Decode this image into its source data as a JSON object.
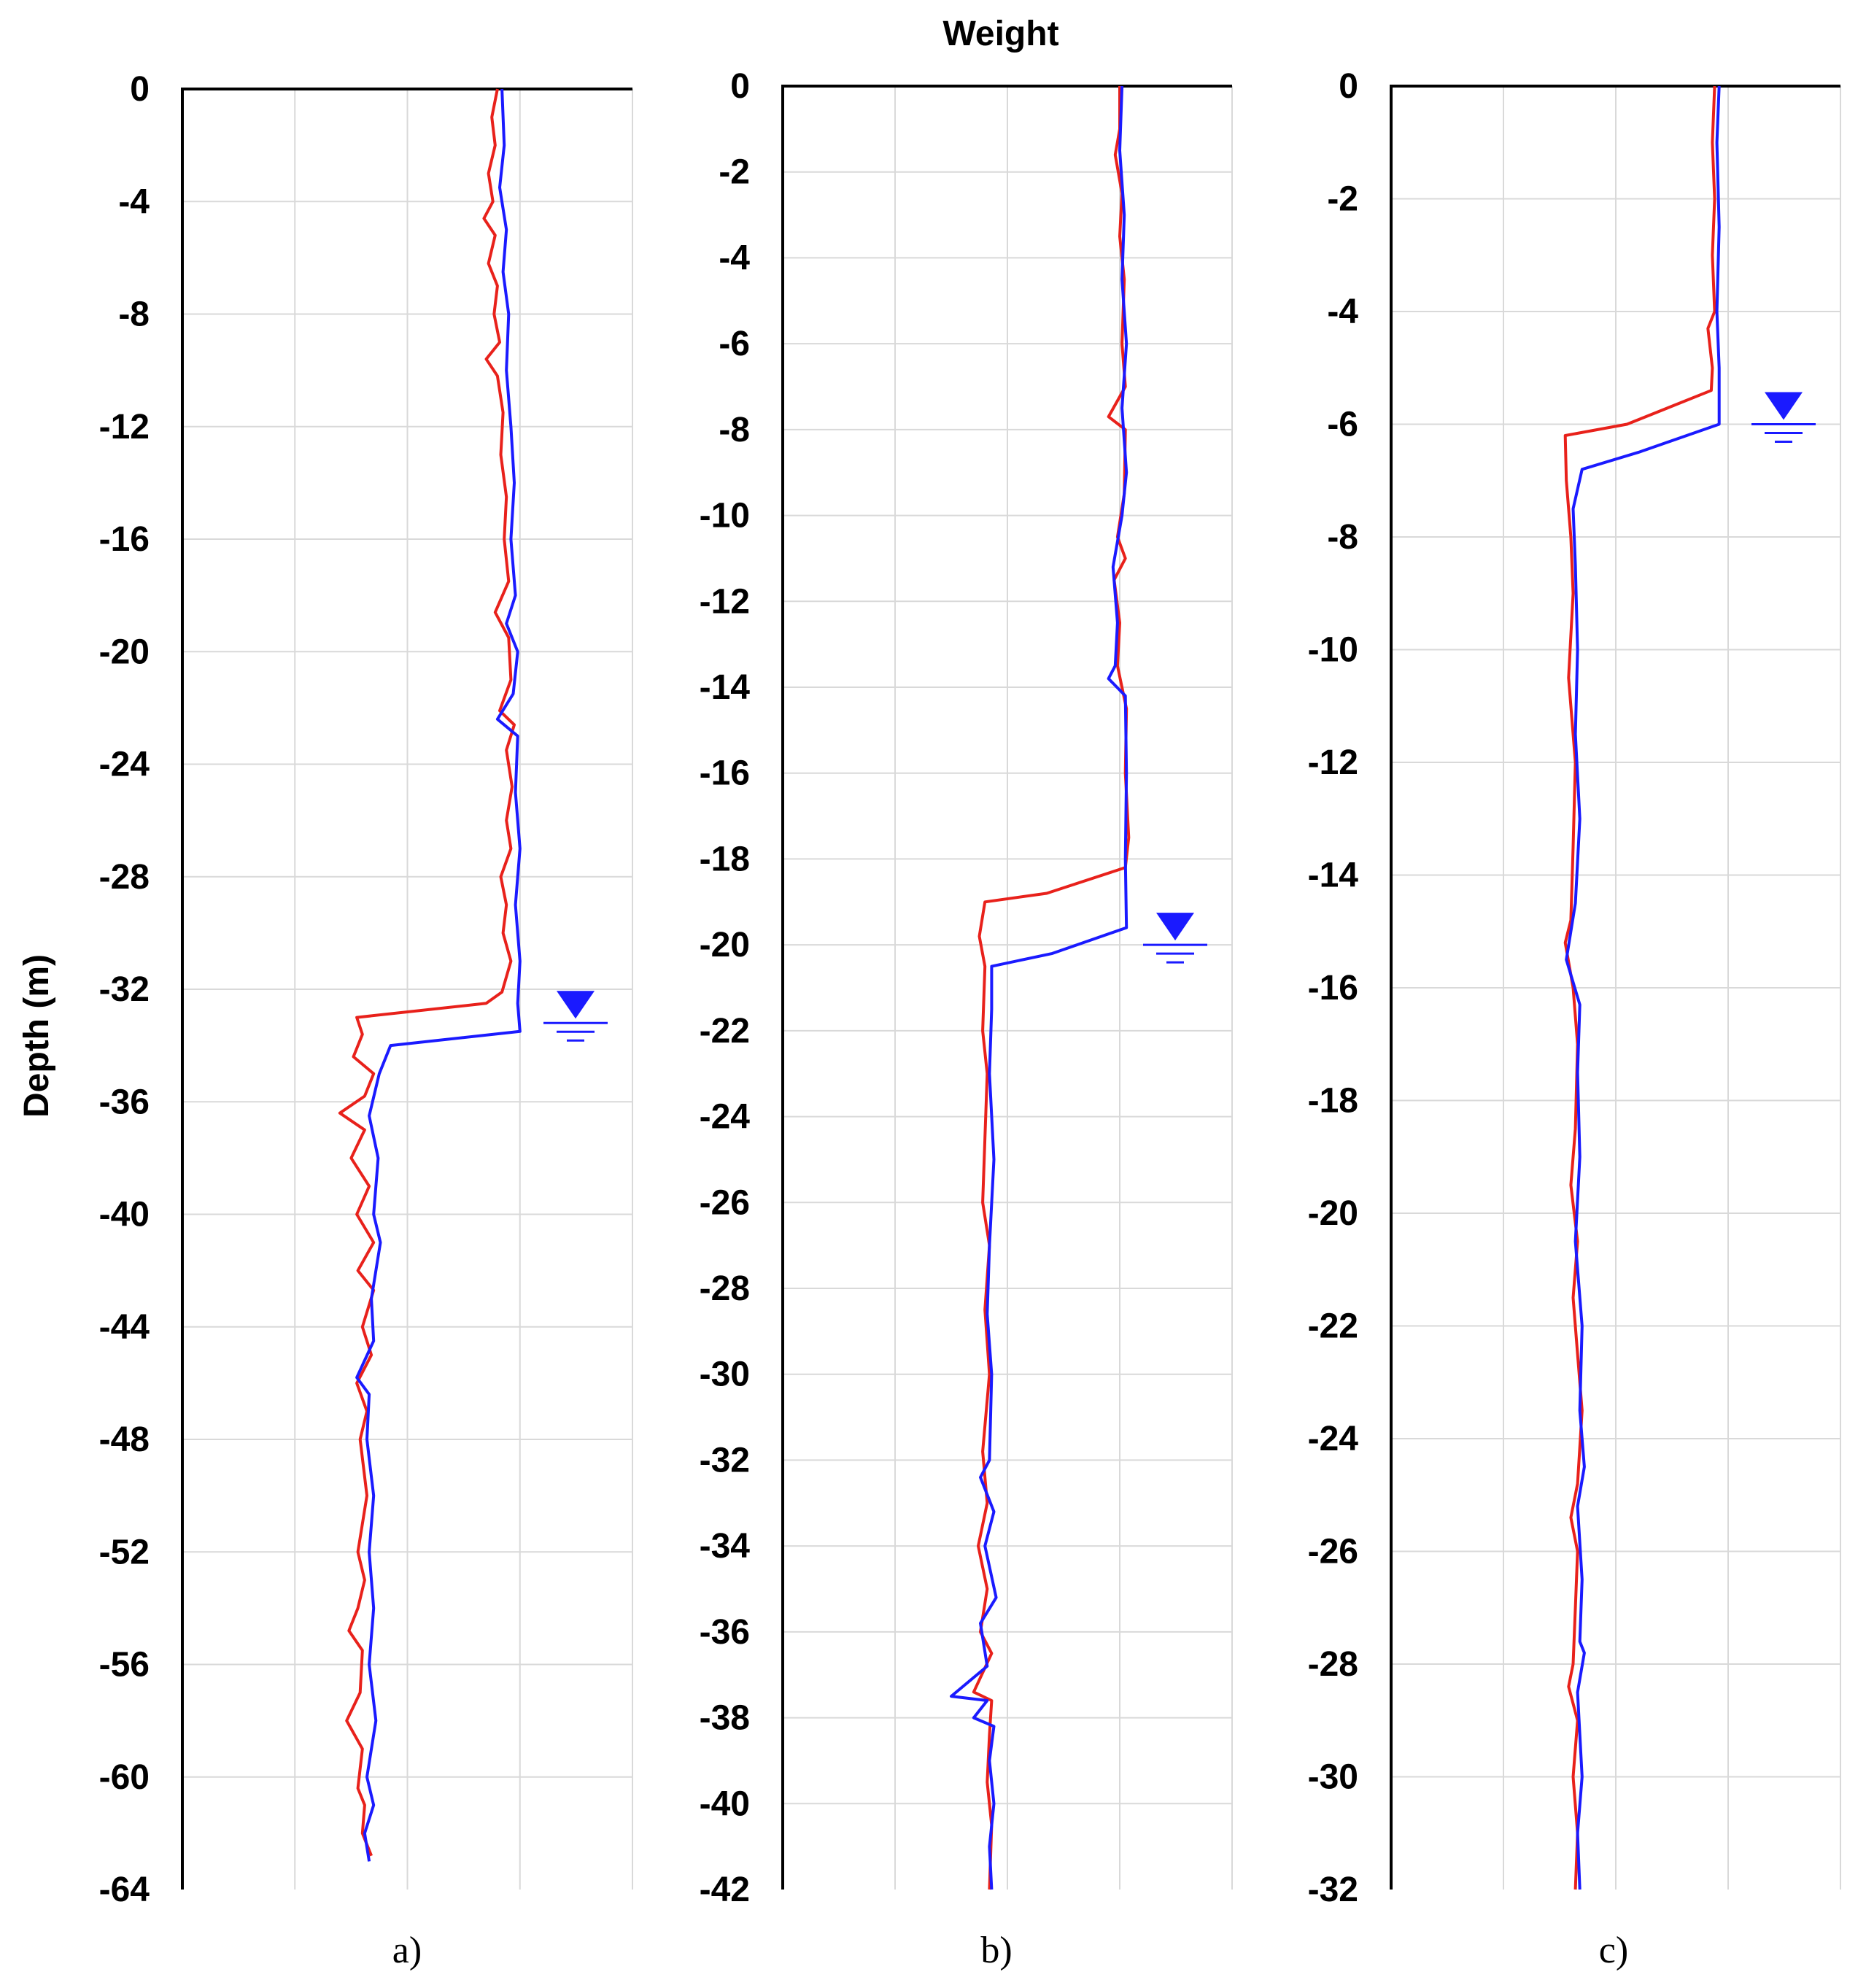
{
  "figure": {
    "title": "Weight",
    "ylabel": "Depth (m)"
  },
  "colors": {
    "series_red": "#e8211b",
    "series_blue": "#1a1aff",
    "water_table": "#1a1aff"
  },
  "water_table_icon": "inverted-triangle-water-table",
  "chart_data": [
    {
      "type": "line",
      "panel_label": "a)",
      "ylim": [
        -64,
        0
      ],
      "yticks": [
        "0",
        "-4",
        "-8",
        "-12",
        "-16",
        "-20",
        "-24",
        "-28",
        "-32",
        "-36",
        "-40",
        "-44",
        "-48",
        "-52",
        "-56",
        "-60",
        "-64"
      ],
      "xlim": [
        0,
        4
      ],
      "grid": true,
      "water_table_depth": -33.2,
      "series": [
        {
          "color": "#e8211b",
          "points": [
            [
              2.8,
              0
            ],
            [
              2.75,
              -1
            ],
            [
              2.78,
              -2
            ],
            [
              2.72,
              -3
            ],
            [
              2.76,
              -4
            ],
            [
              2.68,
              -4.6
            ],
            [
              2.78,
              -5.2
            ],
            [
              2.72,
              -6.2
            ],
            [
              2.8,
              -7
            ],
            [
              2.77,
              -8
            ],
            [
              2.82,
              -9
            ],
            [
              2.7,
              -9.6
            ],
            [
              2.8,
              -10.2
            ],
            [
              2.85,
              -11.5
            ],
            [
              2.83,
              -13
            ],
            [
              2.88,
              -14.5
            ],
            [
              2.86,
              -16
            ],
            [
              2.9,
              -17.5
            ],
            [
              2.78,
              -18.6
            ],
            [
              2.9,
              -19.5
            ],
            [
              2.92,
              -21
            ],
            [
              2.82,
              -22.1
            ],
            [
              2.95,
              -22.6
            ],
            [
              2.88,
              -23.5
            ],
            [
              2.93,
              -24.8
            ],
            [
              2.88,
              -26
            ],
            [
              2.92,
              -27
            ],
            [
              2.83,
              -28
            ],
            [
              2.88,
              -29
            ],
            [
              2.85,
              -30
            ],
            [
              2.92,
              -31
            ],
            [
              2.84,
              -32.1
            ],
            [
              2.7,
              -32.5
            ],
            [
              1.55,
              -33.0
            ],
            [
              1.6,
              -33.6
            ],
            [
              1.52,
              -34.4
            ],
            [
              1.7,
              -35
            ],
            [
              1.62,
              -35.8
            ],
            [
              1.4,
              -36.4
            ],
            [
              1.62,
              -37
            ],
            [
              1.5,
              -38
            ],
            [
              1.66,
              -39
            ],
            [
              1.55,
              -40
            ],
            [
              1.7,
              -41
            ],
            [
              1.56,
              -42
            ],
            [
              1.7,
              -42.7
            ],
            [
              1.6,
              -44
            ],
            [
              1.68,
              -45
            ],
            [
              1.55,
              -46
            ],
            [
              1.64,
              -47
            ],
            [
              1.58,
              -48
            ],
            [
              1.64,
              -50
            ],
            [
              1.56,
              -52
            ],
            [
              1.62,
              -53
            ],
            [
              1.56,
              -54
            ],
            [
              1.48,
              -54.8
            ],
            [
              1.6,
              -55.5
            ],
            [
              1.58,
              -57
            ],
            [
              1.46,
              -58
            ],
            [
              1.6,
              -59
            ],
            [
              1.56,
              -60.4
            ],
            [
              1.62,
              -61
            ],
            [
              1.6,
              -62
            ],
            [
              1.68,
              -62.8
            ]
          ]
        },
        {
          "color": "#1a1aff",
          "points": [
            [
              2.84,
              0
            ],
            [
              2.86,
              -2
            ],
            [
              2.82,
              -3.5
            ],
            [
              2.88,
              -5
            ],
            [
              2.85,
              -6.5
            ],
            [
              2.9,
              -8
            ],
            [
              2.88,
              -10
            ],
            [
              2.92,
              -12
            ],
            [
              2.95,
              -14
            ],
            [
              2.92,
              -16
            ],
            [
              2.96,
              -18
            ],
            [
              2.88,
              -19
            ],
            [
              2.98,
              -20
            ],
            [
              2.94,
              -21.5
            ],
            [
              2.8,
              -22.4
            ],
            [
              2.98,
              -23
            ],
            [
              2.96,
              -25
            ],
            [
              3.0,
              -27
            ],
            [
              2.96,
              -29
            ],
            [
              3.0,
              -31
            ],
            [
              2.98,
              -32.5
            ],
            [
              3.0,
              -33.5
            ],
            [
              1.85,
              -34.0
            ],
            [
              1.75,
              -35.0
            ],
            [
              1.66,
              -36.5
            ],
            [
              1.74,
              -38
            ],
            [
              1.7,
              -40
            ],
            [
              1.76,
              -41
            ],
            [
              1.68,
              -43
            ],
            [
              1.7,
              -44.5
            ],
            [
              1.55,
              -45.8
            ],
            [
              1.66,
              -46.4
            ],
            [
              1.64,
              -48
            ],
            [
              1.7,
              -50
            ],
            [
              1.66,
              -52
            ],
            [
              1.7,
              -54
            ],
            [
              1.66,
              -56
            ],
            [
              1.72,
              -58
            ],
            [
              1.64,
              -60
            ],
            [
              1.7,
              -61
            ],
            [
              1.62,
              -62
            ],
            [
              1.66,
              -63
            ]
          ]
        }
      ]
    },
    {
      "type": "line",
      "panel_label": "b)",
      "ylim": [
        -42,
        0
      ],
      "yticks": [
        "0",
        "-2",
        "-4",
        "-6",
        "-8",
        "-10",
        "-12",
        "-14",
        "-16",
        "-18",
        "-20",
        "-22",
        "-24",
        "-26",
        "-28",
        "-30",
        "-32",
        "-34",
        "-36",
        "-38",
        "-40",
        "-42"
      ],
      "xlim": [
        0,
        4
      ],
      "grid": true,
      "water_table_depth": -20,
      "series": [
        {
          "color": "#e8211b",
          "points": [
            [
              3.0,
              0
            ],
            [
              3.0,
              -1
            ],
            [
              2.96,
              -1.6
            ],
            [
              3.02,
              -2.5
            ],
            [
              3.0,
              -3.5
            ],
            [
              3.04,
              -4.5
            ],
            [
              3.02,
              -6
            ],
            [
              3.05,
              -7
            ],
            [
              2.9,
              -7.7
            ],
            [
              3.05,
              -8
            ],
            [
              3.04,
              -9.5
            ],
            [
              2.98,
              -10.5
            ],
            [
              3.05,
              -11
            ],
            [
              2.95,
              -11.5
            ],
            [
              3.0,
              -12.5
            ],
            [
              2.98,
              -13.5
            ],
            [
              3.06,
              -14.5
            ],
            [
              3.05,
              -16
            ],
            [
              3.08,
              -17.5
            ],
            [
              3.05,
              -18.2
            ],
            [
              2.35,
              -18.8
            ],
            [
              1.8,
              -19.0
            ],
            [
              1.75,
              -19.8
            ],
            [
              1.8,
              -20.5
            ],
            [
              1.78,
              -22
            ],
            [
              1.82,
              -23
            ],
            [
              1.8,
              -24.5
            ],
            [
              1.78,
              -26
            ],
            [
              1.84,
              -27
            ],
            [
              1.8,
              -28.5
            ],
            [
              1.84,
              -30
            ],
            [
              1.78,
              -31.8
            ],
            [
              1.82,
              -33
            ],
            [
              1.74,
              -34
            ],
            [
              1.82,
              -35
            ],
            [
              1.76,
              -36
            ],
            [
              1.86,
              -36.5
            ],
            [
              1.7,
              -37.4
            ],
            [
              1.86,
              -37.6
            ],
            [
              1.84,
              -38.4
            ],
            [
              1.82,
              -39.5
            ],
            [
              1.86,
              -40.5
            ],
            [
              1.84,
              -42
            ]
          ]
        },
        {
          "color": "#1a1aff",
          "points": [
            [
              3.02,
              0
            ],
            [
              3.0,
              -1.5
            ],
            [
              3.04,
              -3
            ],
            [
              3.02,
              -4.5
            ],
            [
              3.06,
              -6
            ],
            [
              3.02,
              -7.5
            ],
            [
              3.06,
              -9
            ],
            [
              3.02,
              -10
            ],
            [
              2.94,
              -11.2
            ],
            [
              2.98,
              -12.5
            ],
            [
              2.96,
              -13.5
            ],
            [
              2.9,
              -13.8
            ],
            [
              3.05,
              -14.2
            ],
            [
              3.06,
              -16
            ],
            [
              3.05,
              -18
            ],
            [
              3.06,
              -19.6
            ],
            [
              2.4,
              -20.2
            ],
            [
              1.86,
              -20.5
            ],
            [
              1.86,
              -21.5
            ],
            [
              1.84,
              -23
            ],
            [
              1.88,
              -25
            ],
            [
              1.84,
              -27
            ],
            [
              1.82,
              -28.6
            ],
            [
              1.86,
              -30
            ],
            [
              1.84,
              -32
            ],
            [
              1.76,
              -32.4
            ],
            [
              1.88,
              -33.2
            ],
            [
              1.8,
              -34
            ],
            [
              1.9,
              -35.2
            ],
            [
              1.76,
              -35.8
            ],
            [
              1.82,
              -36.8
            ],
            [
              1.5,
              -37.5
            ],
            [
              1.82,
              -37.6
            ],
            [
              1.7,
              -38.0
            ],
            [
              1.88,
              -38.2
            ],
            [
              1.84,
              -39
            ],
            [
              1.88,
              -40
            ],
            [
              1.84,
              -41
            ],
            [
              1.86,
              -42
            ]
          ]
        }
      ]
    },
    {
      "type": "line",
      "panel_label": "c)",
      "ylim": [
        -32,
        0
      ],
      "yticks": [
        "0",
        "-2",
        "-4",
        "-6",
        "-8",
        "-10",
        "-12",
        "-14",
        "-16",
        "-18",
        "-20",
        "-22",
        "-24",
        "-26",
        "-28",
        "-30",
        "-32"
      ],
      "xlim": [
        0,
        4
      ],
      "grid": true,
      "water_table_depth": -6,
      "series": [
        {
          "color": "#e8211b",
          "points": [
            [
              2.88,
              0
            ],
            [
              2.86,
              -1
            ],
            [
              2.88,
              -2
            ],
            [
              2.86,
              -3
            ],
            [
              2.88,
              -4
            ],
            [
              2.82,
              -4.3
            ],
            [
              2.86,
              -5
            ],
            [
              2.85,
              -5.4
            ],
            [
              2.1,
              -6.0
            ],
            [
              1.55,
              -6.2
            ],
            [
              1.56,
              -7
            ],
            [
              1.6,
              -8
            ],
            [
              1.62,
              -9
            ],
            [
              1.58,
              -10.5
            ],
            [
              1.64,
              -12
            ],
            [
              1.62,
              -13.5
            ],
            [
              1.6,
              -14.8
            ],
            [
              1.55,
              -15.2
            ],
            [
              1.62,
              -16
            ],
            [
              1.66,
              -17
            ],
            [
              1.64,
              -18.5
            ],
            [
              1.6,
              -19.5
            ],
            [
              1.66,
              -20.5
            ],
            [
              1.62,
              -21.5
            ],
            [
              1.66,
              -22.5
            ],
            [
              1.7,
              -23.5
            ],
            [
              1.66,
              -24.8
            ],
            [
              1.6,
              -25.4
            ],
            [
              1.66,
              -26
            ],
            [
              1.64,
              -27
            ],
            [
              1.62,
              -28
            ],
            [
              1.58,
              -28.4
            ],
            [
              1.66,
              -29
            ],
            [
              1.62,
              -30
            ],
            [
              1.66,
              -31
            ],
            [
              1.64,
              -32
            ]
          ]
        },
        {
          "color": "#1a1aff",
          "points": [
            [
              2.92,
              0
            ],
            [
              2.9,
              -1
            ],
            [
              2.92,
              -2.5
            ],
            [
              2.9,
              -4
            ],
            [
              2.92,
              -5
            ],
            [
              2.92,
              -6.0
            ],
            [
              2.2,
              -6.5
            ],
            [
              1.7,
              -6.8
            ],
            [
              1.62,
              -7.5
            ],
            [
              1.64,
              -8.5
            ],
            [
              1.66,
              -10
            ],
            [
              1.64,
              -11.5
            ],
            [
              1.68,
              -13
            ],
            [
              1.64,
              -14.5
            ],
            [
              1.56,
              -15.5
            ],
            [
              1.68,
              -16.3
            ],
            [
              1.66,
              -17.5
            ],
            [
              1.68,
              -19
            ],
            [
              1.64,
              -20.5
            ],
            [
              1.7,
              -22
            ],
            [
              1.68,
              -23.5
            ],
            [
              1.72,
              -24.5
            ],
            [
              1.66,
              -25.2
            ],
            [
              1.7,
              -26.5
            ],
            [
              1.68,
              -27.6
            ],
            [
              1.72,
              -27.8
            ],
            [
              1.66,
              -28.5
            ],
            [
              1.7,
              -30
            ],
            [
              1.66,
              -31
            ],
            [
              1.68,
              -32
            ]
          ]
        }
      ]
    }
  ]
}
